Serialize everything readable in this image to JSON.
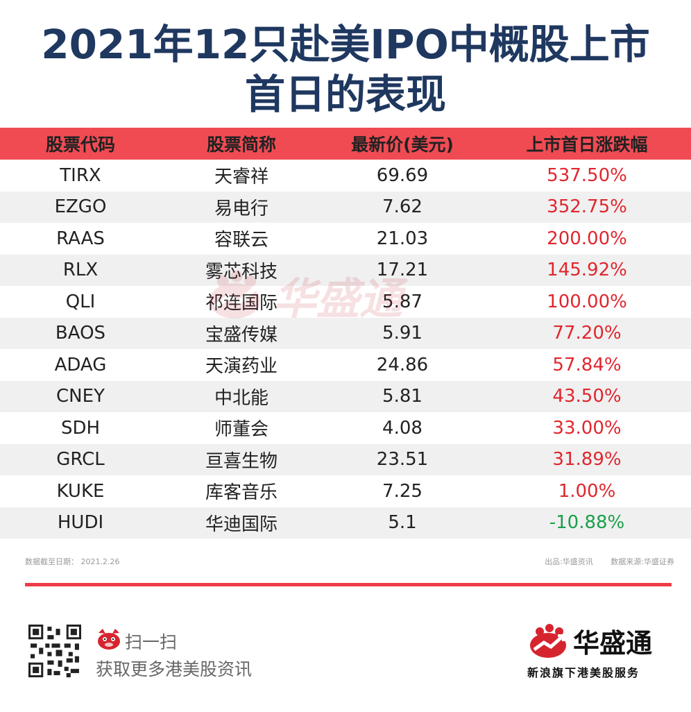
{
  "title": {
    "line1": "2021年12只赴美IPO中概股上市",
    "line2": "首日的表现"
  },
  "table": {
    "headers": [
      "股票代码",
      "股票简称",
      "最新价(美元)",
      "上市首日涨跌幅"
    ],
    "rows": [
      {
        "code": "TIRX",
        "name": "天睿祥",
        "price": "69.69",
        "change": "537.50%",
        "direction": "up"
      },
      {
        "code": "EZGO",
        "name": "易电行",
        "price": "7.62",
        "change": "352.75%",
        "direction": "up"
      },
      {
        "code": "RAAS",
        "name": "容联云",
        "price": "21.03",
        "change": "200.00%",
        "direction": "up"
      },
      {
        "code": "RLX",
        "name": "雾芯科技",
        "price": "17.21",
        "change": "145.92%",
        "direction": "up"
      },
      {
        "code": "QLI",
        "name": "祁连国际",
        "price": "5.87",
        "change": "100.00%",
        "direction": "up"
      },
      {
        "code": "BAOS",
        "name": "宝盛传媒",
        "price": "5.91",
        "change": "77.20%",
        "direction": "up"
      },
      {
        "code": "ADAG",
        "name": "天演药业",
        "price": "24.86",
        "change": "57.84%",
        "direction": "up"
      },
      {
        "code": "CNEY",
        "name": "中北能",
        "price": "5.81",
        "change": "43.50%",
        "direction": "up"
      },
      {
        "code": "SDH",
        "name": "师董会",
        "price": "4.08",
        "change": "33.00%",
        "direction": "up"
      },
      {
        "code": "GRCL",
        "name": "亘喜生物",
        "price": "23.51",
        "change": "31.89%",
        "direction": "up"
      },
      {
        "code": "KUKE",
        "name": "库客音乐",
        "price": "7.25",
        "change": "1.00%",
        "direction": "up"
      },
      {
        "code": "HUDI",
        "name": "华迪国际",
        "price": "5.1",
        "change": "-10.88%",
        "direction": "down"
      }
    ]
  },
  "watermark": {
    "text": "华盛通",
    "icon": "huasheng-logo-icon"
  },
  "notes": {
    "date": "数据截至日期：  2021.2.26",
    "source_out": "出品:华盛资讯",
    "source_data": "数据来源:华盛证券"
  },
  "footer": {
    "qr_icon": "qr-code-icon",
    "mascot_icon": "mascot-icon",
    "scan_label": "扫一扫",
    "scan_sub": "获取更多港美股资讯",
    "brand_icon": "huasheng-logo-icon",
    "brand_name": "华盛通",
    "brand_slogan": "新浪旗下港美股服务"
  },
  "colors": {
    "title": "#1f3860",
    "header_bg": "#f04b53",
    "row_alt_bg": "#f0f0f0",
    "positive": "#e0262e",
    "negative": "#1a9f4a",
    "accent_line": "#ee3b46"
  }
}
